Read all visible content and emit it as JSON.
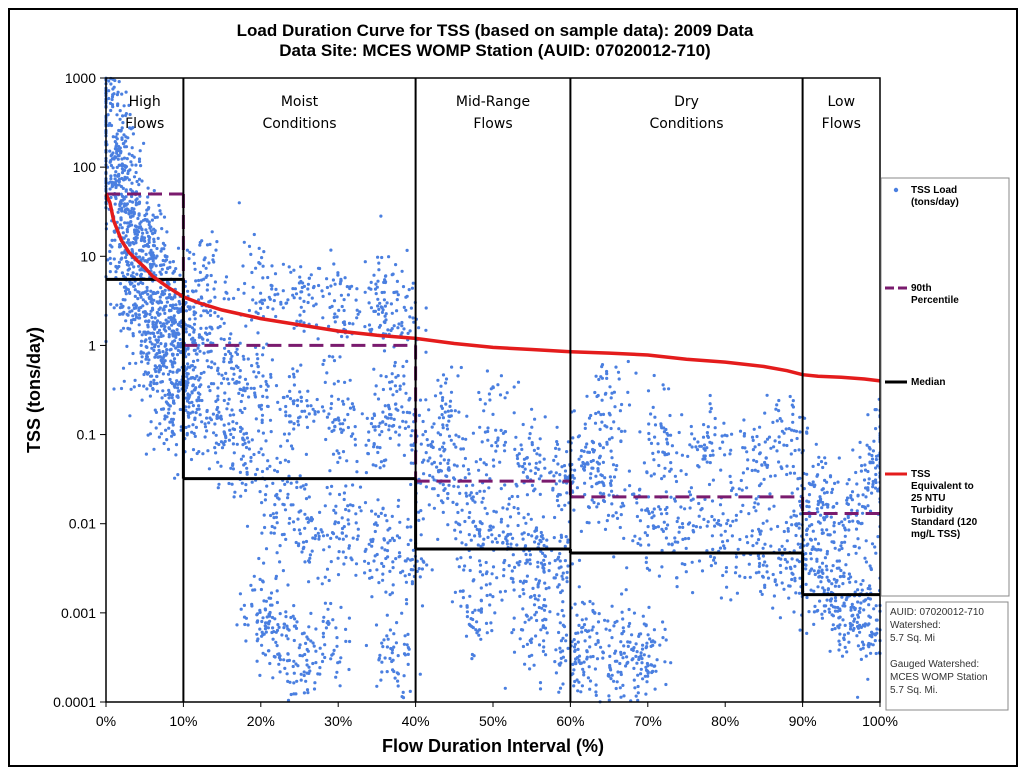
{
  "chart_data": {
    "type": "scatter",
    "title": [
      "Load Duration Curve for TSS (based on sample data): 2009 Data",
      "Data Site: MCES WOMP Station (AUID: 07020012-710)"
    ],
    "xlabel": "Flow Duration Interval (%)",
    "ylabel": "TSS (tons/day)",
    "xlim": [
      0,
      100
    ],
    "ylim": [
      0.0001,
      1000
    ],
    "y_scale": "log",
    "x_ticks": [
      "0%",
      "10%",
      "20%",
      "30%",
      "40%",
      "50%",
      "60%",
      "70%",
      "80%",
      "90%",
      "100%"
    ],
    "y_ticks": [
      "0.0001",
      "0.001",
      "0.01",
      "0.1",
      "1",
      "10",
      "100",
      "1000"
    ],
    "grid": false,
    "regions": [
      {
        "label": [
          "High",
          "Flows"
        ],
        "x_range": [
          0,
          10
        ]
      },
      {
        "label": [
          "Moist",
          "Conditions"
        ],
        "x_range": [
          10,
          40
        ]
      },
      {
        "label": [
          "Mid-Range",
          "Flows"
        ],
        "x_range": [
          40,
          60
        ]
      },
      {
        "label": [
          "Dry",
          "Conditions"
        ],
        "x_range": [
          60,
          90
        ]
      },
      {
        "label": [
          "Low",
          "Flows"
        ],
        "x_range": [
          90,
          100
        ]
      }
    ],
    "series": [
      {
        "name": "TSS Load (tons/day)",
        "type": "scatter",
        "color": "#4a7fe0",
        "description_points": [
          [
            0.3,
            800
          ],
          [
            0.5,
            400
          ],
          [
            1,
            150
          ],
          [
            1.5,
            90
          ],
          [
            2,
            60
          ],
          [
            3,
            30
          ],
          [
            4,
            20
          ],
          [
            5,
            12
          ],
          [
            6,
            8
          ],
          [
            7,
            5
          ],
          [
            8,
            3
          ],
          [
            9,
            1.5
          ],
          [
            10,
            0.8
          ],
          [
            2,
            20
          ],
          [
            4,
            6
          ],
          [
            6,
            2
          ],
          [
            8,
            0.8
          ],
          [
            10,
            0.3
          ],
          [
            3,
            3
          ],
          [
            5,
            1
          ],
          [
            7,
            0.4
          ],
          [
            9,
            0.15
          ],
          [
            12,
            0.3
          ],
          [
            15,
            0.1
          ],
          [
            18,
            0.05
          ],
          [
            22,
            0.02
          ],
          [
            26,
            0.01
          ],
          [
            30,
            0.007
          ],
          [
            35,
            0.005
          ],
          [
            39,
            0.004
          ],
          [
            12,
            2
          ],
          [
            16,
            0.6
          ],
          [
            20,
            0.3
          ],
          [
            25,
            0.2
          ],
          [
            30,
            0.15
          ],
          [
            35,
            0.12
          ],
          [
            38,
            0.2
          ],
          [
            13,
            5
          ],
          [
            20,
            4
          ],
          [
            25,
            3.5
          ],
          [
            30,
            3
          ],
          [
            35,
            2.8
          ],
          [
            38,
            2.5
          ],
          [
            20,
            0.001
          ],
          [
            22,
            0.0007
          ],
          [
            25,
            0.0003
          ],
          [
            28,
            0.0005
          ],
          [
            37,
            0.0003
          ],
          [
            42,
            0.05
          ],
          [
            45,
            0.02
          ],
          [
            48,
            0.008
          ],
          [
            52,
            0.005
          ],
          [
            55,
            0.004
          ],
          [
            58,
            0.003
          ],
          [
            44,
            0.2
          ],
          [
            50,
            0.1
          ],
          [
            55,
            0.05
          ],
          [
            59,
            0.03
          ],
          [
            48,
            0.001
          ],
          [
            55,
            0.0007
          ],
          [
            60,
            0.0003
          ],
          [
            62,
            0.05
          ],
          [
            65,
            0.02
          ],
          [
            70,
            0.01
          ],
          [
            75,
            0.008
          ],
          [
            80,
            0.006
          ],
          [
            85,
            0.005
          ],
          [
            89,
            0.004
          ],
          [
            65,
            0.2
          ],
          [
            72,
            0.1
          ],
          [
            78,
            0.08
          ],
          [
            84,
            0.05
          ],
          [
            88,
            0.1
          ],
          [
            62,
            0.0005
          ],
          [
            65,
            0.0002
          ],
          [
            68,
            0.0003
          ],
          [
            70,
            0.0003
          ],
          [
            91,
            0.005
          ],
          [
            93,
            0.002
          ],
          [
            95,
            0.0015
          ],
          [
            97,
            0.001
          ],
          [
            99,
            0.0008
          ],
          [
            92,
            0.02
          ],
          [
            95,
            0.01
          ],
          [
            98,
            0.02
          ],
          [
            100,
            0.05
          ]
        ]
      },
      {
        "name": "90th Percentile",
        "type": "step",
        "color": "#7a1b6e",
        "dashed": true,
        "segments": [
          {
            "x": [
              0,
              10
            ],
            "y": 50
          },
          {
            "x": [
              10,
              40
            ],
            "y": 1
          },
          {
            "x": [
              40,
              60
            ],
            "y": 0.03
          },
          {
            "x": [
              60,
              90
            ],
            "y": 0.02
          },
          {
            "x": [
              90,
              100
            ],
            "y": 0.013
          }
        ]
      },
      {
        "name": "Median",
        "type": "step",
        "color": "#000000",
        "dashed": false,
        "segments": [
          {
            "x": [
              0,
              10
            ],
            "y": 5.5
          },
          {
            "x": [
              10,
              40
            ],
            "y": 0.032
          },
          {
            "x": [
              40,
              60
            ],
            "y": 0.0052
          },
          {
            "x": [
              60,
              90
            ],
            "y": 0.0047
          },
          {
            "x": [
              90,
              100
            ],
            "y": 0.0016
          }
        ]
      },
      {
        "name": "TSS Equivalent to 25 NTU Turbidity Standard (120 mg/L TSS)",
        "type": "line",
        "color": "#e41c1c",
        "x": [
          0,
          0.5,
          1,
          2,
          3,
          4,
          5,
          6,
          8,
          10,
          12,
          15,
          20,
          25,
          30,
          35,
          40,
          45,
          50,
          55,
          60,
          65,
          70,
          75,
          80,
          85,
          88,
          90,
          92,
          95,
          98,
          100
        ],
        "y": [
          50,
          40,
          25,
          15,
          11,
          9,
          7.5,
          6,
          4.5,
          3.5,
          3,
          2.5,
          2,
          1.7,
          1.45,
          1.3,
          1.2,
          1.05,
          0.95,
          0.9,
          0.85,
          0.82,
          0.78,
          0.7,
          0.65,
          0.58,
          0.52,
          0.47,
          0.45,
          0.44,
          0.42,
          0.4
        ]
      }
    ],
    "legend": [
      {
        "label": [
          "TSS Load",
          "(tons/day)"
        ],
        "marker": "dot",
        "color": "#4a7fe0"
      },
      {
        "label": [
          "90th",
          "Percentile"
        ],
        "marker": "dash",
        "color": "#7a1b6e"
      },
      {
        "label": [
          "Median"
        ],
        "marker": "line",
        "color": "#000000"
      },
      {
        "label": [
          "TSS",
          "Equivalent to",
          "25 NTU",
          "Turbidity",
          "Standard (120",
          "mg/L TSS)"
        ],
        "marker": "line",
        "color": "#e41c1c"
      }
    ],
    "info_box": [
      "AUID: 07020012-710",
      "Watershed:",
      "5.7 Sq. Mi",
      "",
      "Gauged Watershed:",
      "MCES WOMP Station",
      "5.7 Sq. Mi."
    ]
  }
}
